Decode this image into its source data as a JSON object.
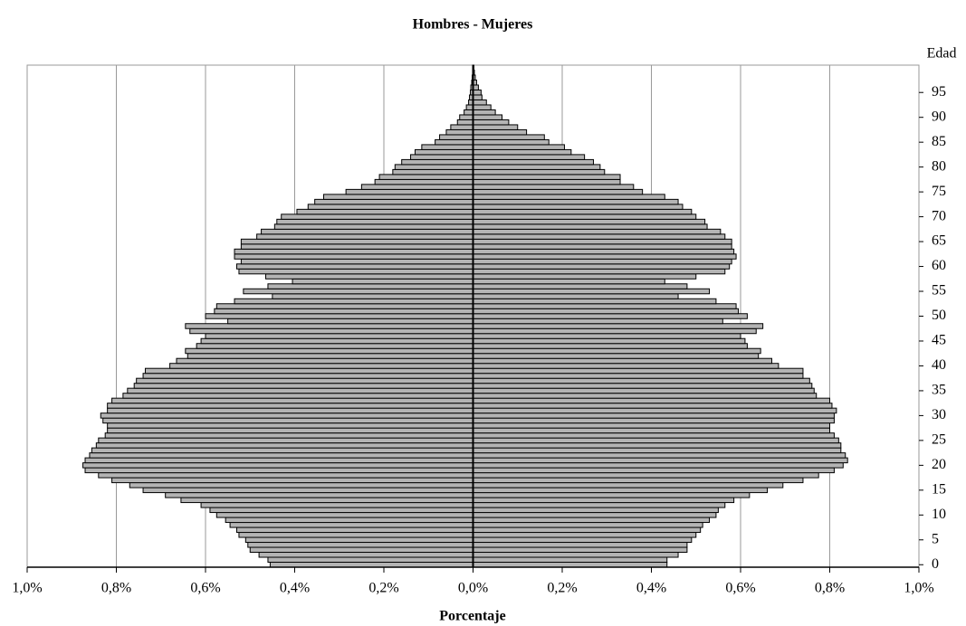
{
  "chart_data": {
    "type": "pyramid",
    "title": "Hombres - Mujeres",
    "x_label": "Porcentaje",
    "y_label": "Edad",
    "categories": [
      0,
      null,
      null,
      null,
      null,
      5,
      null,
      null,
      null,
      null,
      10,
      null,
      null,
      null,
      null,
      15,
      null,
      null,
      null,
      null,
      20,
      null,
      null,
      null,
      null,
      25,
      null,
      null,
      null,
      null,
      30,
      null,
      null,
      null,
      null,
      35,
      null,
      null,
      null,
      null,
      40,
      null,
      null,
      null,
      null,
      45,
      null,
      null,
      null,
      null,
      50,
      null,
      null,
      null,
      null,
      55,
      null,
      null,
      null,
      null,
      60,
      null,
      null,
      null,
      null,
      65,
      null,
      null,
      null,
      null,
      70,
      null,
      null,
      null,
      null,
      75,
      null,
      null,
      null,
      null,
      80,
      null,
      null,
      null,
      null,
      85,
      null,
      null,
      null,
      null,
      90,
      null,
      null,
      null,
      null,
      95,
      null,
      null,
      null,
      null,
      null
    ],
    "series": [
      {
        "color": "#b4b4b4",
        "values": [
          -0.455,
          -0.46,
          -0.48,
          -0.5,
          -0.505,
          -0.51,
          -0.525,
          -0.53,
          -0.545,
          -0.555,
          -0.575,
          -0.59,
          -0.61,
          -0.655,
          -0.69,
          -0.74,
          -0.77,
          -0.81,
          -0.84,
          -0.87,
          -0.875,
          -0.87,
          -0.86,
          -0.855,
          -0.845,
          -0.84,
          -0.825,
          -0.82,
          -0.82,
          -0.83,
          -0.835,
          -0.82,
          -0.82,
          -0.81,
          -0.785,
          -0.775,
          -0.76,
          -0.755,
          -0.74,
          -0.735,
          -0.68,
          -0.665,
          -0.64,
          -0.645,
          -0.62,
          -0.61,
          -0.6,
          -0.635,
          -0.645,
          -0.55,
          -0.6,
          -0.58,
          -0.575,
          -0.535,
          -0.45,
          -0.515,
          -0.46,
          -0.405,
          -0.465,
          -0.525,
          -0.53,
          -0.52,
          -0.535,
          -0.535,
          -0.52,
          -0.52,
          -0.485,
          -0.475,
          -0.445,
          -0.44,
          -0.43,
          -0.395,
          -0.37,
          -0.355,
          -0.335,
          -0.285,
          -0.25,
          -0.22,
          -0.21,
          -0.18,
          -0.175,
          -0.16,
          -0.14,
          -0.13,
          -0.115,
          -0.085,
          -0.075,
          -0.06,
          -0.05,
          -0.035,
          -0.03,
          -0.02,
          -0.015,
          -0.01,
          -0.008,
          -0.006,
          -0.005,
          -0.003,
          -0.002,
          -0.001,
          -0.001
        ]
      },
      {
        "color": "#b4b4b4",
        "values": [
          0.435,
          0.435,
          0.46,
          0.48,
          0.48,
          0.49,
          0.5,
          0.51,
          0.515,
          0.53,
          0.545,
          0.55,
          0.565,
          0.585,
          0.62,
          0.66,
          0.695,
          0.74,
          0.775,
          0.81,
          0.83,
          0.84,
          0.835,
          0.825,
          0.825,
          0.82,
          0.81,
          0.8,
          0.8,
          0.81,
          0.81,
          0.815,
          0.805,
          0.8,
          0.77,
          0.765,
          0.76,
          0.755,
          0.74,
          0.74,
          0.685,
          0.67,
          0.64,
          0.645,
          0.615,
          0.61,
          0.6,
          0.635,
          0.65,
          0.56,
          0.615,
          0.595,
          0.59,
          0.545,
          0.46,
          0.53,
          0.48,
          0.43,
          0.5,
          0.565,
          0.575,
          0.58,
          0.59,
          0.585,
          0.58,
          0.58,
          0.565,
          0.555,
          0.525,
          0.52,
          0.5,
          0.49,
          0.47,
          0.46,
          0.43,
          0.38,
          0.36,
          0.33,
          0.33,
          0.295,
          0.285,
          0.27,
          0.25,
          0.22,
          0.205,
          0.17,
          0.16,
          0.12,
          0.1,
          0.08,
          0.065,
          0.05,
          0.04,
          0.03,
          0.02,
          0.018,
          0.012,
          0.008,
          0.005,
          0.003,
          0.002
        ]
      }
    ],
    "xlim": [
      -1.0,
      1.0
    ],
    "xticks": [
      {
        "value": -1.0,
        "label": "1,0%"
      },
      {
        "value": -0.8,
        "label": "0,8%"
      },
      {
        "value": -0.6,
        "label": "0,6%"
      },
      {
        "value": -0.4,
        "label": "0,4%"
      },
      {
        "value": -0.2,
        "label": "0,2%"
      },
      {
        "value": 0,
        "label": "0,0%"
      },
      {
        "value": 0.2,
        "label": "0,2%"
      },
      {
        "value": 0.4,
        "label": "0,4%"
      },
      {
        "value": 0.6,
        "label": "0,6%"
      },
      {
        "value": 0.8,
        "label": "0,8%"
      },
      {
        "value": 1.0,
        "label": "1,0%"
      }
    ],
    "grid": true
  }
}
